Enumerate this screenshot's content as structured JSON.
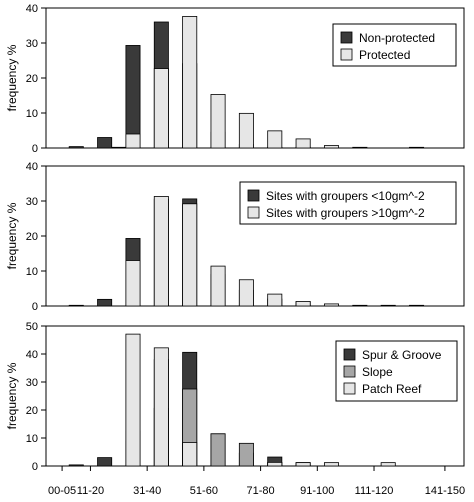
{
  "chart_data": [
    {
      "type": "bar",
      "ylabel": "frequency %",
      "ylim": [
        0,
        40
      ],
      "yticks": [
        0,
        10,
        20,
        30,
        40
      ],
      "legend_position": "top-right",
      "series": [
        {
          "name": "Non-protected",
          "color": "#3a3a3a",
          "values": [
            0,
            0.4,
            0,
            3,
            0.2,
            29.3,
            0,
            36,
            0,
            24.1,
            0,
            4.5,
            0,
            1,
            0,
            0.2,
            0,
            0.2,
            0,
            0,
            0,
            0.2,
            0,
            0,
            0,
            0.2,
            0,
            0
          ]
        },
        {
          "name": "Protected",
          "color": "#e6e6e6",
          "values": [
            0,
            0,
            0,
            0,
            0,
            4,
            0,
            22.7,
            0,
            37.6,
            0,
            15.3,
            0,
            9.9,
            0,
            4.9,
            0,
            2.6,
            0,
            0.7,
            0,
            0,
            0,
            0,
            0,
            0,
            0,
            0
          ]
        }
      ]
    },
    {
      "type": "bar",
      "ylabel": "frequency %",
      "ylim": [
        0,
        40
      ],
      "yticks": [
        0,
        10,
        20,
        30,
        40
      ],
      "legend_position": "top-right",
      "series": [
        {
          "name": "Sites with groupers <10gm^-2",
          "color": "#3a3a3a",
          "values": [
            0,
            0.2,
            0,
            1.9,
            0,
            19.3,
            0,
            30.5,
            0,
            30.6,
            0,
            9,
            0,
            4.5,
            0,
            2,
            0,
            1.2,
            0,
            0.2,
            0,
            0.2,
            0,
            0.2,
            0,
            0.2,
            0,
            0
          ]
        },
        {
          "name": "Sites with groupers >10gm^-2",
          "color": "#e6e6e6",
          "values": [
            0,
            0,
            0,
            0,
            0,
            13,
            0,
            31.3,
            0,
            29.2,
            0,
            11.4,
            0,
            7.5,
            0,
            3.4,
            0,
            1.3,
            0,
            0.6,
            0,
            0,
            0,
            0,
            0,
            0,
            0,
            0
          ]
        }
      ]
    },
    {
      "type": "bar",
      "ylabel": "frequency %",
      "ylim": [
        0,
        50
      ],
      "yticks": [
        0,
        10,
        20,
        30,
        40,
        50
      ],
      "legend_position": "top-right",
      "series": [
        {
          "name": "Spur & Groove",
          "color": "#3a3a3a",
          "values": [
            0,
            0.4,
            0,
            3,
            0,
            12.5,
            0,
            20.6,
            0,
            40.6,
            0,
            11.5,
            0,
            4.6,
            0,
            3.2,
            0,
            1.2,
            0,
            0,
            0,
            0,
            0,
            0,
            0,
            0,
            0,
            0
          ]
        },
        {
          "name": "Slope",
          "color": "#a6a6a6",
          "values": [
            0,
            0,
            0,
            0,
            0,
            8.9,
            0,
            38,
            0,
            27.5,
            0,
            11.5,
            0,
            8.1,
            0,
            1.2,
            0,
            0,
            0,
            0,
            0,
            0,
            0,
            0,
            0,
            0,
            0,
            0
          ]
        },
        {
          "name": "Patch Reef",
          "color": "#e6e6e6",
          "values": [
            0,
            0,
            0,
            0,
            0,
            47.1,
            0,
            42.2,
            0,
            8.4,
            0,
            0,
            0,
            0,
            0,
            1.3,
            0,
            1.2,
            0,
            1.2,
            0,
            0,
            0,
            1.2,
            0,
            0,
            0,
            0
          ]
        }
      ]
    }
  ],
  "x_tick_labels": [
    "00-05",
    "11-20",
    "31-40",
    "51-60",
    "71-80",
    "91-100",
    "111-120",
    "141-150"
  ],
  "x_tick_bins": [
    0,
    2,
    6,
    10,
    14,
    18,
    22,
    27
  ],
  "bin_count": 28
}
